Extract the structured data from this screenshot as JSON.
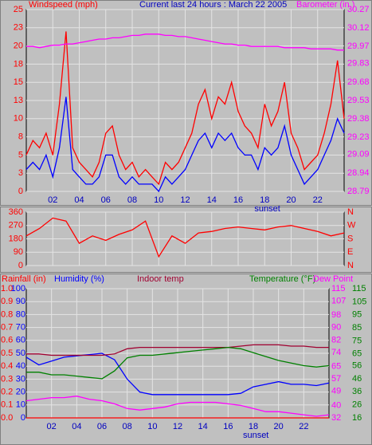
{
  "chart_data": [
    {
      "type": "line",
      "title": "Current last 24 hours : March 22 2005",
      "ylabel": "Windspeed (mph)",
      "y2label": "Barometer (in.)",
      "ycolor": "#ff0000",
      "y2color": "#ff00ff",
      "titlecolor": "#0000c0",
      "grid": true,
      "xlim": [
        0,
        24
      ],
      "xticks": [
        {
          "value": 2,
          "label": "02"
        },
        {
          "value": 4,
          "label": "04"
        },
        {
          "value": 6,
          "label": "06"
        },
        {
          "value": 8,
          "label": "08"
        },
        10,
        12,
        14,
        16,
        18,
        20,
        22
      ],
      "annotation": {
        "x": 18.2,
        "label": "sunset"
      },
      "ylim": [
        0,
        25
      ],
      "yticks": [
        0,
        {
          "value": 2.5,
          "label": "3"
        },
        5,
        {
          "value": 7.5,
          "label": "8"
        },
        10,
        {
          "value": 12.5,
          "label": "13"
        },
        15,
        {
          "value": 17.5,
          "label": "18"
        },
        20,
        {
          "value": 22.5,
          "label": "23"
        },
        25
      ],
      "y2lim": [
        28.79,
        30.27
      ],
      "y2ticks": [
        28.79,
        28.94,
        29.09,
        29.23,
        29.38,
        29.53,
        29.68,
        29.83,
        29.97,
        30.12,
        30.27
      ],
      "x": [
        0,
        0.5,
        1,
        1.5,
        2,
        2.5,
        3,
        3.5,
        4,
        4.5,
        5,
        5.5,
        6,
        6.5,
        7,
        7.5,
        8,
        8.5,
        9,
        9.5,
        10,
        10.5,
        11,
        11.5,
        12,
        12.5,
        13,
        13.5,
        14,
        14.5,
        15,
        15.5,
        16,
        16.5,
        17,
        17.5,
        18,
        18.5,
        19,
        19.5,
        20,
        20.5,
        21,
        21.5,
        22,
        22.5,
        23,
        23.5,
        24
      ],
      "series": [
        {
          "color": "#ff0000",
          "values": [
            5,
            7,
            6,
            8,
            5,
            12,
            22,
            6,
            4,
            3,
            2,
            4,
            8,
            9,
            5,
            3,
            4,
            2,
            3,
            2,
            1,
            4,
            3,
            4,
            6,
            8,
            12,
            14,
            10,
            13,
            12,
            15,
            11,
            9,
            8,
            6,
            12,
            9,
            11,
            15,
            8,
            6,
            3,
            4,
            5,
            8,
            12,
            18,
            10
          ]
        },
        {
          "color": "#0000ff",
          "values": [
            3,
            4,
            3,
            5,
            2,
            6,
            13,
            3,
            2,
            1,
            1,
            2,
            5,
            5,
            2,
            1,
            2,
            1,
            1,
            1,
            0,
            2,
            1,
            2,
            3,
            5,
            7,
            8,
            6,
            8,
            7,
            8,
            6,
            5,
            5,
            3,
            6,
            5,
            6,
            9,
            5,
            3,
            1,
            2,
            3,
            5,
            7,
            10,
            8
          ]
        },
        {
          "color": "#ff00ff",
          "axis": "y2",
          "values": [
            29.97,
            29.97,
            29.96,
            29.97,
            29.98,
            29.98,
            29.99,
            29.99,
            30.0,
            30.01,
            30.02,
            30.03,
            30.03,
            30.04,
            30.04,
            30.05,
            30.06,
            30.06,
            30.07,
            30.07,
            30.07,
            30.06,
            30.06,
            30.05,
            30.05,
            30.04,
            30.03,
            30.02,
            30.01,
            30.0,
            29.99,
            29.99,
            29.98,
            29.98,
            29.97,
            29.97,
            29.97,
            29.97,
            29.97,
            29.96,
            29.96,
            29.96,
            29.96,
            29.95,
            29.95,
            29.95,
            29.95,
            29.94,
            29.94
          ]
        }
      ]
    },
    {
      "type": "line",
      "ycolor": "#ff0000",
      "y2color": "#ff0000",
      "grid": true,
      "xlim": [
        0,
        24
      ],
      "ylim": [
        0,
        360
      ],
      "yticks": [
        0,
        90,
        180,
        270,
        360
      ],
      "y2lim": [
        0,
        360
      ],
      "y2ticks": [
        {
          "value": 0,
          "label": "N"
        },
        {
          "value": 90,
          "label": "E"
        },
        {
          "value": 180,
          "label": "S"
        },
        {
          "value": 270,
          "label": "W"
        },
        {
          "value": 360,
          "label": "N"
        }
      ],
      "x": [
        0,
        1,
        2,
        3,
        4,
        5,
        6,
        7,
        8,
        9,
        10,
        11,
        12,
        13,
        14,
        15,
        16,
        17,
        18,
        19,
        20,
        21,
        22,
        23,
        24
      ],
      "series": [
        {
          "color": "#ff0000",
          "values": [
            200,
            250,
            320,
            300,
            150,
            200,
            170,
            210,
            240,
            300,
            60,
            200,
            150,
            220,
            230,
            250,
            260,
            250,
            240,
            260,
            270,
            250,
            230,
            200,
            220
          ]
        }
      ]
    },
    {
      "type": "line",
      "grid": true,
      "ycolor": "#0000ff",
      "y2color": "#008000",
      "y3color": "#ff0000",
      "y4color": "#ff00ff",
      "xlim": [
        0,
        24
      ],
      "xticks": [
        {
          "value": 2,
          "label": "02"
        },
        {
          "value": 4,
          "label": "04"
        },
        {
          "value": 6,
          "label": "06"
        },
        {
          "value": 8,
          "label": "08"
        },
        10,
        12,
        14,
        16,
        18,
        20,
        22
      ],
      "annotation": {
        "x": 18.2,
        "label": "sunset"
      },
      "ylim": [
        0,
        100
      ],
      "yticks": [
        0,
        10,
        20,
        30,
        40,
        50,
        60,
        70,
        80,
        90,
        100
      ],
      "y2lim": [
        16,
        115
      ],
      "y2ticks": [
        16,
        26,
        36,
        46,
        56,
        65,
        75,
        85,
        95,
        105,
        115
      ],
      "y3lim": [
        0,
        1
      ],
      "y3ticks": [
        {
          "value": 0,
          "label": "0.0"
        },
        0.1,
        0.2,
        0.3,
        0.4,
        0.5,
        0.6,
        0.7,
        0.8,
        0.9,
        {
          "value": 1,
          "label": "1.0"
        }
      ],
      "y4lim": [
        32,
        115
      ],
      "y4ticks": [
        32,
        40,
        49,
        57,
        65,
        74,
        82,
        90,
        98,
        107,
        115
      ],
      "x": [
        0,
        1,
        2,
        3,
        4,
        5,
        6,
        7,
        8,
        9,
        10,
        11,
        12,
        13,
        14,
        15,
        16,
        17,
        18,
        19,
        20,
        21,
        22,
        23,
        24
      ],
      "series": [
        {
          "name": "Rainfall (in)",
          "color": "#ff0000",
          "axis": "y3",
          "values": [
            0,
            0,
            0,
            0,
            0,
            0,
            0,
            0,
            0,
            0,
            0,
            0,
            0,
            0,
            0,
            0,
            0,
            0,
            0,
            0,
            0,
            0,
            0,
            0,
            0
          ]
        },
        {
          "name": "Humidity (%)",
          "color": "#0000ff",
          "values": [
            47,
            41,
            44,
            47,
            48,
            49,
            50,
            45,
            30,
            20,
            18,
            18,
            18,
            18,
            18,
            18,
            18,
            19,
            24,
            26,
            28,
            26,
            26,
            25,
            27
          ]
        },
        {
          "name": "Indoor temp",
          "color": "#a00030",
          "axis": "y2",
          "values": [
            65,
            65,
            64,
            64,
            64,
            64,
            64,
            65,
            69,
            70,
            70,
            70,
            70,
            70,
            70,
            70,
            70,
            71,
            72,
            72,
            72,
            71,
            71,
            70,
            70
          ]
        },
        {
          "name": "Temperature (°F)",
          "color": "#008000",
          "axis": "y2",
          "values": [
            51,
            51,
            49,
            49,
            48,
            47,
            46,
            52,
            62,
            64,
            64,
            65,
            66,
            67,
            68,
            69,
            70,
            69,
            66,
            63,
            60,
            58,
            56,
            55,
            56
          ]
        },
        {
          "name": "Dew Point",
          "color": "#ff00ff",
          "axis": "y4",
          "values": [
            43,
            44,
            45,
            45,
            46,
            44,
            43,
            41,
            38,
            37,
            38,
            39,
            41,
            42,
            42,
            42,
            41,
            40,
            38,
            36,
            36,
            35,
            34,
            33,
            34
          ]
        }
      ]
    }
  ]
}
